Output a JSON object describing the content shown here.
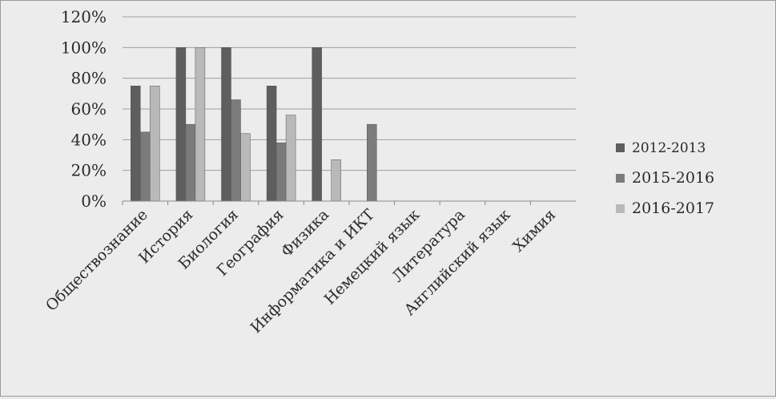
{
  "chart_data": {
    "type": "bar",
    "title": "",
    "xlabel": "",
    "ylabel": "",
    "ylim": [
      0,
      1.2
    ],
    "yticks": [
      "0%",
      "20%",
      "40%",
      "60%",
      "80%",
      "100%",
      "120%"
    ],
    "grid": true,
    "legend_position": "right",
    "categories": [
      "Обществознание",
      "История",
      "Биология",
      "География",
      "Физика",
      "Информатика и ИКТ",
      "Немецкий язык",
      "Литература",
      "Английский язык",
      "Химия"
    ],
    "series": [
      {
        "name": "2012-2013",
        "color": "#5e5e5e",
        "values": [
          0.75,
          1.0,
          1.0,
          0.75,
          1.0,
          0,
          0,
          0,
          0,
          0
        ]
      },
      {
        "name": "2015-2016",
        "color": "#7b7b7b",
        "values": [
          0.45,
          0.5,
          0.66,
          0.38,
          0,
          0.5,
          0,
          0,
          0,
          0
        ]
      },
      {
        "name": "2016-2017",
        "color": "#b9b9b9",
        "values": [
          0.75,
          1.0,
          0.44,
          0.56,
          0.27,
          0,
          0,
          0,
          0,
          0
        ]
      }
    ]
  }
}
